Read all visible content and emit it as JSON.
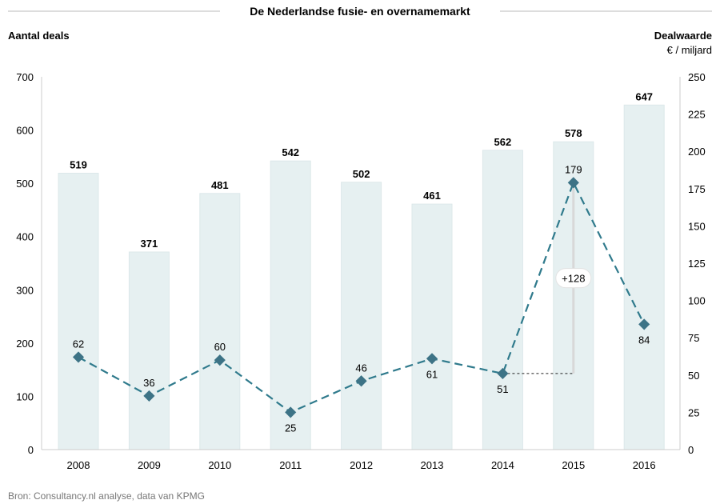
{
  "chart_data": {
    "type": "bar+line",
    "title": "De Nederlandse fusie- en overnamemarkt",
    "ylabel_left": "Aantal deals",
    "ylabel_right": "Dealwaarde",
    "ylabel_right_unit": "€ / miljard",
    "categories": [
      "2008",
      "2009",
      "2010",
      "2011",
      "2012",
      "2013",
      "2014",
      "2015",
      "2016"
    ],
    "ylim_left": [
      0,
      700
    ],
    "yticks_left": [
      0,
      100,
      200,
      300,
      400,
      500,
      600,
      700
    ],
    "ylim_right": [
      0,
      250
    ],
    "yticks_right": [
      0,
      25,
      50,
      75,
      100,
      125,
      150,
      175,
      200,
      225,
      250
    ],
    "grid": false,
    "series": [
      {
        "type": "bar",
        "axis": "left",
        "values": [
          519,
          371,
          481,
          542,
          502,
          461,
          562,
          578,
          647
        ],
        "color": "#e6f0f1"
      },
      {
        "type": "line",
        "axis": "right",
        "style": "dashed",
        "marker": "diamond",
        "values": [
          62,
          36,
          60,
          25,
          46,
          61,
          51,
          179,
          84
        ],
        "color": "#2f7a8c"
      }
    ],
    "annotation": {
      "label": "+128",
      "from_category": "2014",
      "to_category": "2015"
    },
    "source": "Bron: Consultancy.nl analyse, data van KPMG"
  }
}
